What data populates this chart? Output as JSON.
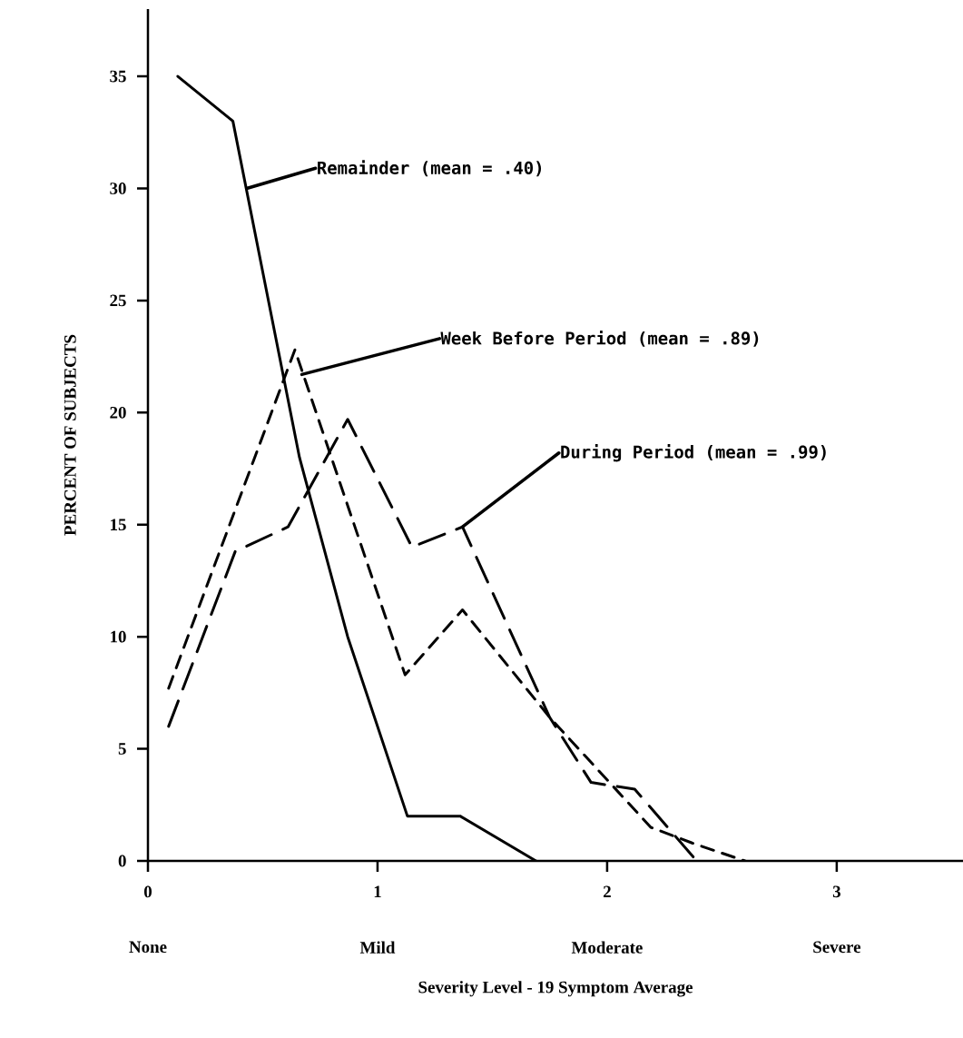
{
  "chart_data": {
    "type": "line",
    "xlabel": "Severity Level - 19 Symptom Average",
    "ylabel": "PERCENT OF SUBJECTS",
    "xlim": [
      0,
      3.55
    ],
    "ylim": [
      0,
      38
    ],
    "xticks": [
      0,
      1,
      2,
      3
    ],
    "yticks": [
      0,
      5,
      10,
      15,
      20,
      25,
      30,
      35
    ],
    "series": [
      {
        "color": "#000000",
        "line_style": "solid",
        "x": [
          0.13,
          0.37,
          0.66,
          0.87,
          1.13,
          1.36,
          1.69
        ],
        "values": [
          35,
          33,
          18,
          10,
          2,
          2,
          0
        ]
      },
      {
        "color": "#000000",
        "line_style": "dotted",
        "x": [
          0.09,
          0.64,
          1.12,
          1.37,
          1.75,
          2.19,
          2.37,
          2.6
        ],
        "values": [
          7.7,
          22.8,
          8.3,
          11.2,
          6.4,
          1.5,
          0.8,
          0
        ]
      },
      {
        "color": "#000000",
        "line_style": "dashed",
        "x": [
          0.09,
          0.38,
          0.61,
          0.87,
          1.15,
          1.37,
          1.75,
          1.93,
          2.12,
          2.39
        ],
        "values": [
          6,
          13.8,
          14.9,
          19.7,
          14,
          14.9,
          6.4,
          3.5,
          3.2,
          0
        ]
      }
    ],
    "annotations": [
      {
        "text": "Remainder (mean = .40)",
        "x": 0.43,
        "y": 30
      },
      {
        "text": "Week Before Period (mean = .89)",
        "x": 0.67,
        "y": 21.7
      },
      {
        "text": "During Period (mean = .99)",
        "x": 1.37,
        "y": 14.9
      },
      "None",
      "Mild",
      "Moderate",
      "Severe"
    ]
  }
}
